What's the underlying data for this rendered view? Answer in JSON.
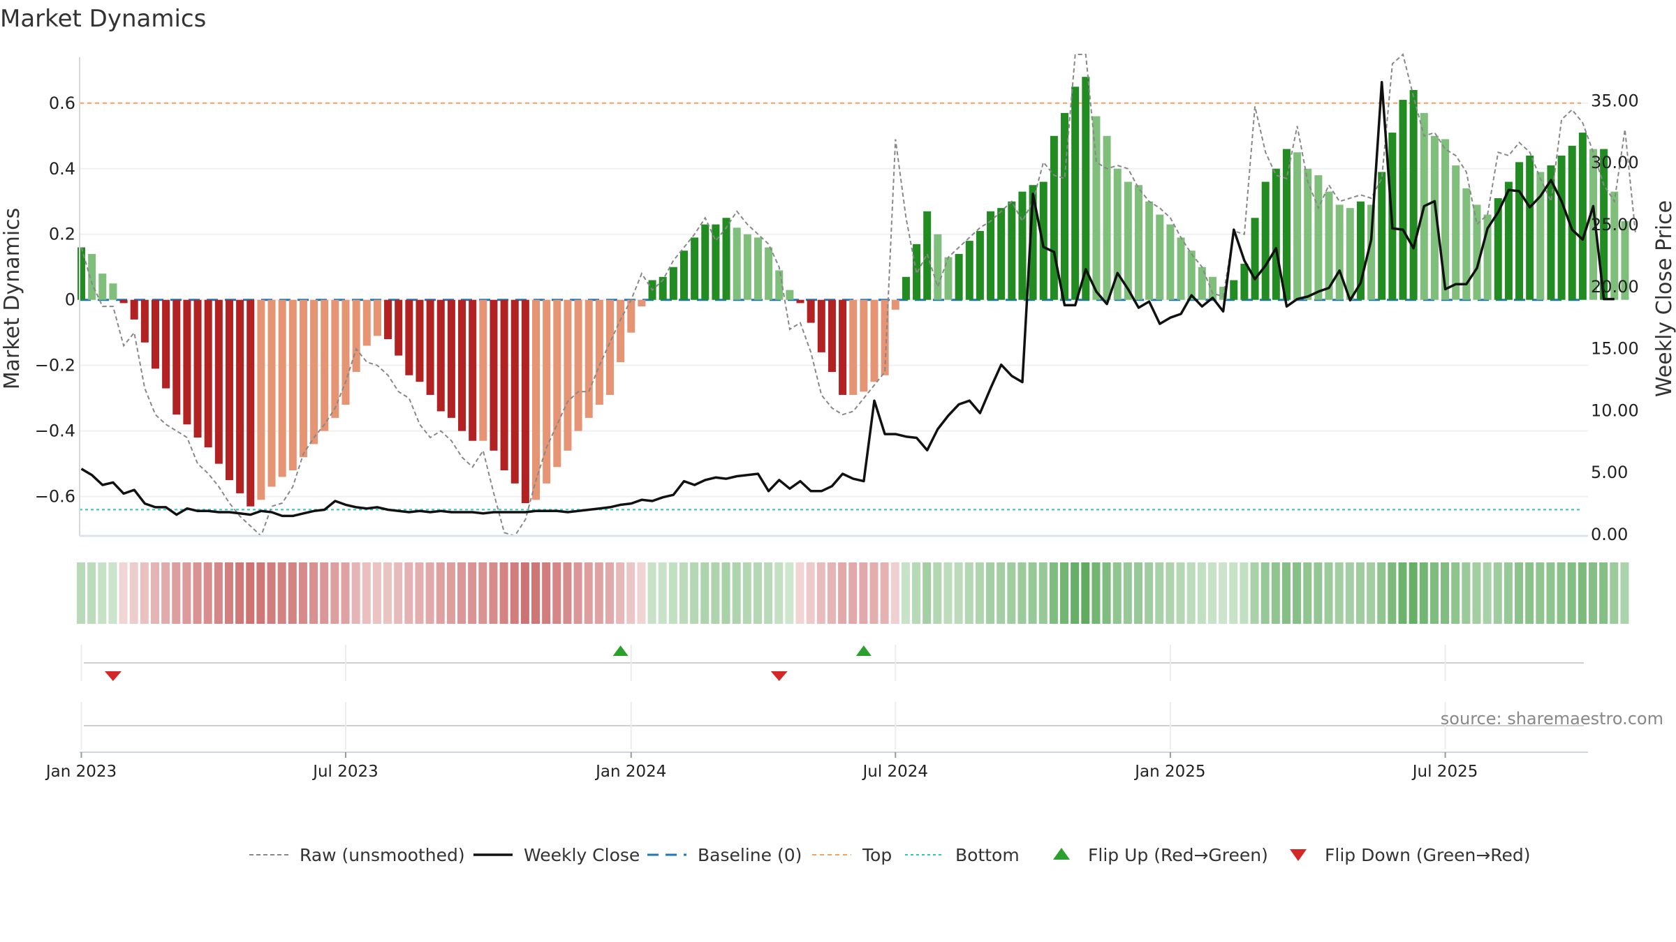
{
  "chart_data": {
    "type": "bar",
    "title": "Market Dynamics",
    "ylabel_left": "Market Dynamics",
    "ylabel_right": "Weekly Close Price",
    "ylim_left": [
      -0.72,
      0.74
    ],
    "ylim_right": [
      0,
      38
    ],
    "left_ticks": [
      {
        "v": 0.6,
        "label": "0.6"
      },
      {
        "v": 0.4,
        "label": "0.4"
      },
      {
        "v": 0.2,
        "label": "0.2"
      },
      {
        "v": 0,
        "label": "0"
      },
      {
        "v": -0.2,
        "label": "−0.2"
      },
      {
        "v": -0.4,
        "label": "−0.4"
      },
      {
        "v": -0.6,
        "label": "−0.6"
      }
    ],
    "right_ticks": [
      {
        "v": 35,
        "label": "35.00"
      },
      {
        "v": 30,
        "label": "30.00"
      },
      {
        "v": 25,
        "label": "25.00"
      },
      {
        "v": 20,
        "label": "20.00"
      },
      {
        "v": 15,
        "label": "15.00"
      },
      {
        "v": 10,
        "label": "10.00"
      },
      {
        "v": 5,
        "label": "5.00"
      },
      {
        "v": 0,
        "label": "0.00"
      }
    ],
    "x_ticks": [
      {
        "week": 1,
        "label": "Jan 2023"
      },
      {
        "week": 26,
        "label": "Jul 2023"
      },
      {
        "week": 53,
        "label": "Jan 2024"
      },
      {
        "week": 78,
        "label": "Jul 2024"
      },
      {
        "week": 104,
        "label": "Jan 2025"
      },
      {
        "week": 130,
        "label": "Jul 2025"
      }
    ],
    "first_week": "2022-12-26",
    "weekly_dynamics": [
      0.16,
      0.14,
      0.08,
      0.05,
      -0.01,
      -0.06,
      -0.13,
      -0.21,
      -0.27,
      -0.35,
      -0.38,
      -0.42,
      -0.45,
      -0.5,
      -0.55,
      -0.59,
      -0.63,
      -0.61,
      -0.57,
      -0.54,
      -0.52,
      -0.48,
      -0.44,
      -0.4,
      -0.36,
      -0.32,
      -0.22,
      -0.14,
      -0.11,
      -0.12,
      -0.17,
      -0.23,
      -0.25,
      -0.29,
      -0.34,
      -0.36,
      -0.4,
      -0.43,
      -0.43,
      -0.46,
      -0.52,
      -0.56,
      -0.62,
      -0.61,
      -0.56,
      -0.51,
      -0.46,
      -0.4,
      -0.36,
      -0.32,
      -0.29,
      -0.19,
      -0.1,
      -0.02,
      0.06,
      0.07,
      0.1,
      0.15,
      0.19,
      0.23,
      0.23,
      0.25,
      0.22,
      0.2,
      0.19,
      0.16,
      0.09,
      0.03,
      -0.01,
      -0.07,
      -0.16,
      -0.22,
      -0.29,
      -0.29,
      -0.28,
      -0.25,
      -0.23,
      -0.03,
      0.07,
      0.17,
      0.27,
      0.2,
      0.13,
      0.14,
      0.18,
      0.21,
      0.27,
      0.28,
      0.3,
      0.33,
      0.35,
      0.36,
      0.5,
      0.57,
      0.65,
      0.68,
      0.56,
      0.5,
      0.4,
      0.36,
      0.35,
      0.3,
      0.26,
      0.23,
      0.19,
      0.15,
      0.1,
      0.07,
      0.04,
      0.06,
      0.11,
      0.25,
      0.36,
      0.4,
      0.46,
      0.45,
      0.4,
      0.38,
      0.33,
      0.29,
      0.28,
      0.3,
      0.29,
      0.39,
      0.51,
      0.61,
      0.64,
      0.57,
      0.5,
      0.49,
      0.41,
      0.34,
      0.29,
      0.26,
      0.31,
      0.36,
      0.42,
      0.44,
      0.39,
      0.41,
      0.44,
      0.47,
      0.51,
      0.46,
      0.46,
      0.33,
      0.24
    ],
    "weekly_raw": [
      0.16,
      0.05,
      -0.02,
      -0.02,
      -0.14,
      -0.1,
      -0.27,
      -0.35,
      -0.38,
      -0.4,
      -0.42,
      -0.5,
      -0.53,
      -0.57,
      -0.62,
      -0.66,
      -0.69,
      -0.72,
      -0.63,
      -0.62,
      -0.57,
      -0.47,
      -0.42,
      -0.38,
      -0.33,
      -0.25,
      -0.15,
      -0.19,
      -0.2,
      -0.23,
      -0.28,
      -0.3,
      -0.38,
      -0.42,
      -0.4,
      -0.43,
      -0.48,
      -0.51,
      -0.46,
      -0.59,
      -0.71,
      -0.73,
      -0.67,
      -0.55,
      -0.45,
      -0.38,
      -0.31,
      -0.28,
      -0.28,
      -0.2,
      -0.13,
      -0.06,
      0.0,
      0.08,
      0.03,
      0.06,
      0.12,
      0.16,
      0.2,
      0.25,
      0.18,
      0.22,
      0.27,
      0.23,
      0.2,
      0.17,
      0.1,
      -0.09,
      -0.07,
      -0.16,
      -0.29,
      -0.33,
      -0.35,
      -0.34,
      -0.3,
      -0.26,
      -0.22,
      0.49,
      0.25,
      0.08,
      0.14,
      0.04,
      0.13,
      0.16,
      0.19,
      0.22,
      0.24,
      0.27,
      0.3,
      0.24,
      0.3,
      0.42,
      0.38,
      0.37,
      0.84,
      0.79,
      0.42,
      0.4,
      0.41,
      0.4,
      0.34,
      0.3,
      0.28,
      0.25,
      0.19,
      0.14,
      0.1,
      0.02,
      0.01,
      0.21,
      0.2,
      0.59,
      0.45,
      0.38,
      0.37,
      0.53,
      0.36,
      0.28,
      0.35,
      0.3,
      0.31,
      0.32,
      0.31,
      0.37,
      0.72,
      0.8,
      0.62,
      0.5,
      0.51,
      0.46,
      0.44,
      0.39,
      0.23,
      0.26,
      0.45,
      0.44,
      0.48,
      0.45,
      0.37,
      0.3,
      0.55,
      0.58,
      0.54,
      0.45,
      0.35,
      0.3,
      0.52,
      0.2
    ],
    "weekly_close": [
      5.3,
      4.8,
      4.0,
      4.2,
      3.3,
      3.6,
      2.5,
      2.2,
      2.2,
      1.6,
      2.1,
      1.9,
      1.9,
      1.8,
      1.8,
      1.7,
      1.6,
      1.9,
      1.8,
      1.5,
      1.5,
      1.7,
      1.9,
      2.0,
      2.7,
      2.4,
      2.2,
      2.1,
      2.2,
      2.0,
      1.9,
      1.8,
      1.9,
      1.8,
      1.9,
      1.8,
      1.8,
      1.8,
      1.7,
      1.8,
      1.8,
      1.8,
      1.8,
      1.9,
      1.9,
      1.9,
      1.8,
      1.9,
      2.0,
      2.1,
      2.2,
      2.4,
      2.5,
      2.8,
      2.7,
      3.0,
      3.2,
      4.3,
      4.0,
      4.4,
      4.6,
      4.5,
      4.7,
      4.8,
      4.9,
      3.5,
      4.4,
      3.7,
      4.3,
      3.5,
      3.5,
      3.9,
      4.9,
      4.5,
      4.3,
      10.8,
      8.1,
      8.1,
      7.9,
      7.8,
      6.8,
      8.5,
      9.6,
      10.5,
      10.8,
      9.8,
      11.8,
      13.7,
      12.8,
      12.3,
      27.5,
      23.2,
      22.8,
      18.5,
      18.5,
      21.4,
      19.6,
      18.6,
      21.1,
      19.8,
      18.3,
      18.8,
      17.0,
      17.5,
      17.8,
      19.3,
      18.4,
      19.1,
      18.0,
      24.6,
      22.1,
      20.6,
      21.7,
      23.1,
      18.4,
      19.0,
      19.2,
      19.6,
      19.9,
      21.3,
      18.9,
      20.3,
      23.8,
      36.5,
      24.7,
      24.6,
      23.1,
      26.5,
      26.9,
      19.8,
      20.2,
      20.2,
      21.5,
      24.7,
      26.0,
      27.8,
      27.7,
      26.4,
      27.3,
      28.6,
      26.9,
      24.6,
      23.8,
      26.5,
      19.0,
      19.0
    ],
    "top_level": 0.6,
    "bottom_level": -0.64,
    "baseline_level": 0,
    "flip_up_weeks": [
      52,
      75
    ],
    "flip_down_weeks": [
      4,
      67
    ],
    "legend": [
      {
        "key": "raw",
        "label": "Raw (unsmoothed)"
      },
      {
        "key": "close",
        "label": "Weekly Close"
      },
      {
        "key": "baseline",
        "label": "Baseline (0)"
      },
      {
        "key": "top",
        "label": "Top"
      },
      {
        "key": "bottom",
        "label": "Bottom"
      },
      {
        "key": "flip_up",
        "label": "Flip Up (Red→Green)"
      },
      {
        "key": "flip_down",
        "label": "Flip Down (Green→Red)"
      }
    ],
    "source": "source: sharemaestro.com"
  },
  "colors": {
    "green_strong": "#228b22",
    "green_light": "#7fbf7b",
    "red_strong": "#b22222",
    "red_light": "#e59474",
    "raw_line": "#888888",
    "close_line": "#111111",
    "baseline": "#1f77b4",
    "top": "#f4a261",
    "bottom": "#2ec4c4",
    "flip_up": "#2ca02c",
    "flip_down": "#d62728"
  }
}
